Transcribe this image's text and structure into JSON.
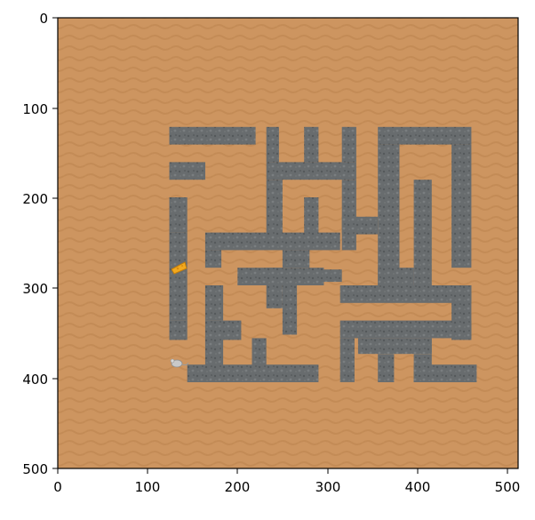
{
  "axes": {
    "x_ticks": [
      "0",
      "100",
      "200",
      "300",
      "400",
      "500"
    ],
    "y_ticks": [
      "0",
      "100",
      "200",
      "300",
      "400",
      "500"
    ],
    "xlim": [
      0,
      512
    ],
    "ylim": [
      512,
      0
    ]
  },
  "scene": {
    "background": "sand",
    "maze_tiles": "stone",
    "items": [
      {
        "name": "cheese",
        "icon": "cheese-icon"
      },
      {
        "name": "mouse",
        "icon": "mouse-icon"
      }
    ]
  },
  "colors": {
    "sand": "#cd9560",
    "sand_dark": "#c08852",
    "stone": "#686c6e",
    "stone_dark": "#4e5254",
    "cheese": "#f2a91e",
    "mouse": "#c9c9c9"
  }
}
